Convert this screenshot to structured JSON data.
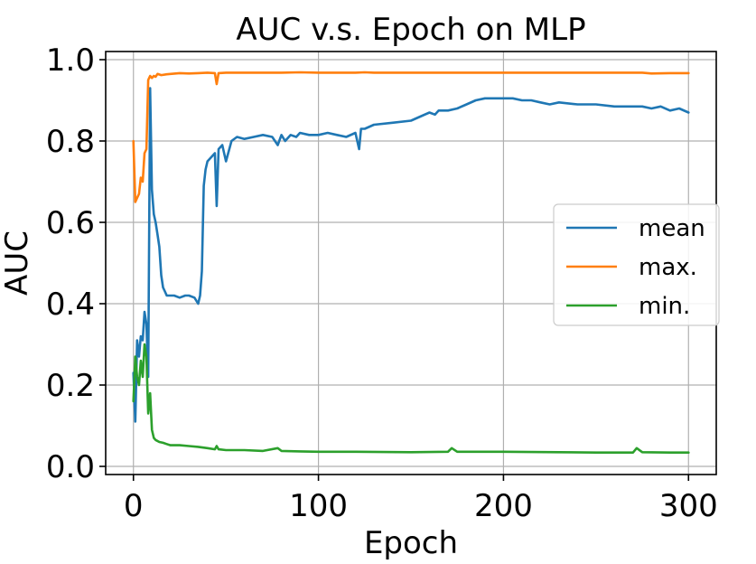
{
  "chart_data": {
    "type": "line",
    "title": "AUC v.s. Epoch on MLP",
    "xlabel": "Epoch",
    "ylabel": "AUC",
    "xlim": [
      -15,
      315
    ],
    "ylim": [
      -0.02,
      1.02
    ],
    "xticks": [
      "0",
      "100",
      "200",
      "300"
    ],
    "xtick_values": [
      0,
      100,
      200,
      300
    ],
    "yticks": [
      "0.0",
      "0.2",
      "0.4",
      "0.6",
      "0.8",
      "1.0"
    ],
    "ytick_values": [
      0.0,
      0.2,
      0.4,
      0.6,
      0.8,
      1.0
    ],
    "grid": true,
    "legend_position": "center-right",
    "series": [
      {
        "name": "mean",
        "color": "#1f77b4",
        "x": [
          0,
          1,
          2,
          3,
          4,
          5,
          6,
          7,
          8,
          9,
          10,
          11,
          12,
          13,
          14,
          15,
          16,
          17,
          18,
          20,
          22,
          25,
          28,
          30,
          33,
          35,
          36,
          37,
          38,
          39,
          40,
          42,
          44,
          45,
          46,
          48,
          50,
          53,
          56,
          60,
          65,
          70,
          75,
          78,
          80,
          82,
          85,
          88,
          90,
          95,
          100,
          105,
          110,
          115,
          120,
          122,
          123,
          125,
          130,
          140,
          150,
          155,
          160,
          163,
          165,
          170,
          175,
          180,
          185,
          190,
          195,
          200,
          205,
          210,
          215,
          220,
          225,
          230,
          240,
          250,
          260,
          270,
          275,
          280,
          285,
          290,
          295,
          300
        ],
        "y": [
          0.23,
          0.11,
          0.31,
          0.27,
          0.32,
          0.31,
          0.38,
          0.35,
          0.22,
          0.93,
          0.68,
          0.62,
          0.6,
          0.57,
          0.54,
          0.47,
          0.44,
          0.43,
          0.42,
          0.42,
          0.42,
          0.415,
          0.42,
          0.42,
          0.415,
          0.4,
          0.42,
          0.48,
          0.69,
          0.73,
          0.75,
          0.76,
          0.77,
          0.64,
          0.78,
          0.79,
          0.75,
          0.8,
          0.81,
          0.805,
          0.81,
          0.815,
          0.81,
          0.79,
          0.815,
          0.8,
          0.815,
          0.81,
          0.82,
          0.815,
          0.815,
          0.82,
          0.815,
          0.81,
          0.82,
          0.78,
          0.83,
          0.83,
          0.84,
          0.845,
          0.85,
          0.86,
          0.87,
          0.865,
          0.875,
          0.875,
          0.88,
          0.89,
          0.9,
          0.905,
          0.905,
          0.905,
          0.905,
          0.9,
          0.9,
          0.895,
          0.89,
          0.895,
          0.89,
          0.89,
          0.885,
          0.885,
          0.885,
          0.88,
          0.885,
          0.875,
          0.88,
          0.87
        ]
      },
      {
        "name": "max.",
        "color": "#ff7f0e",
        "x": [
          0,
          1,
          2,
          3,
          4,
          5,
          6,
          7,
          8,
          9,
          10,
          11,
          12,
          13,
          15,
          18,
          20,
          25,
          30,
          35,
          40,
          44,
          45,
          46,
          50,
          60,
          70,
          80,
          90,
          100,
          110,
          120,
          125,
          130,
          150,
          170,
          200,
          230,
          250,
          270,
          275,
          280,
          290,
          300
        ],
        "y": [
          0.8,
          0.65,
          0.66,
          0.67,
          0.71,
          0.7,
          0.77,
          0.78,
          0.95,
          0.96,
          0.955,
          0.96,
          0.958,
          0.965,
          0.962,
          0.964,
          0.965,
          0.967,
          0.966,
          0.967,
          0.968,
          0.967,
          0.94,
          0.967,
          0.968,
          0.968,
          0.968,
          0.968,
          0.969,
          0.968,
          0.968,
          0.968,
          0.969,
          0.968,
          0.968,
          0.968,
          0.968,
          0.968,
          0.968,
          0.968,
          0.968,
          0.966,
          0.967,
          0.967
        ]
      },
      {
        "name": "min.",
        "color": "#2ca02c",
        "x": [
          0,
          1,
          2,
          3,
          4,
          5,
          6,
          7,
          8,
          9,
          10,
          11,
          12,
          14,
          16,
          18,
          20,
          25,
          30,
          35,
          40,
          44,
          45,
          46,
          50,
          60,
          70,
          78,
          80,
          90,
          100,
          120,
          150,
          170,
          172,
          175,
          200,
          230,
          250,
          270,
          272,
          275,
          290,
          300
        ],
        "y": [
          0.16,
          0.27,
          0.22,
          0.2,
          0.26,
          0.22,
          0.3,
          0.27,
          0.13,
          0.18,
          0.09,
          0.07,
          0.065,
          0.06,
          0.058,
          0.055,
          0.052,
          0.052,
          0.05,
          0.048,
          0.045,
          0.042,
          0.05,
          0.042,
          0.04,
          0.04,
          0.038,
          0.045,
          0.038,
          0.037,
          0.036,
          0.036,
          0.035,
          0.036,
          0.045,
          0.036,
          0.036,
          0.035,
          0.034,
          0.034,
          0.045,
          0.035,
          0.034,
          0.034
        ]
      }
    ]
  }
}
